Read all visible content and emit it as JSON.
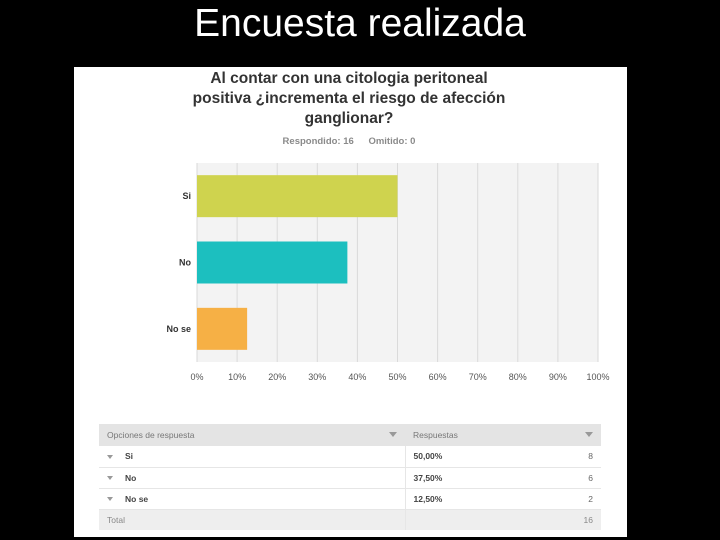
{
  "slide": {
    "title": "Encuesta realizada"
  },
  "survey": {
    "question_lines": [
      "Al contar con una citologia peritoneal",
      "positiva ¿incrementa el riesgo de afección",
      "ganglionar?"
    ],
    "answered": "Respondido: 16",
    "skipped": "Omitido: 0"
  },
  "chart_data": {
    "type": "bar",
    "orientation": "horizontal",
    "categories": [
      "Si",
      "No",
      "No se"
    ],
    "values": [
      50,
      37.5,
      12.5
    ],
    "colors": [
      "#cfd34e",
      "#1cbfbf",
      "#f6b045"
    ],
    "xlim": [
      0,
      100
    ],
    "xticks": [
      "0%",
      "10%",
      "20%",
      "30%",
      "40%",
      "50%",
      "60%",
      "70%",
      "80%",
      "90%",
      "100%"
    ],
    "grid": true
  },
  "table": {
    "headers": [
      "Opciones de respuesta",
      "Respuestas"
    ],
    "rows": [
      {
        "option": "Si",
        "percent": "50,00%",
        "count": "8"
      },
      {
        "option": "No",
        "percent": "37,50%",
        "count": "6"
      },
      {
        "option": "No se",
        "percent": "12,50%",
        "count": "2"
      }
    ],
    "total_label": "Total",
    "total_count": "16"
  }
}
